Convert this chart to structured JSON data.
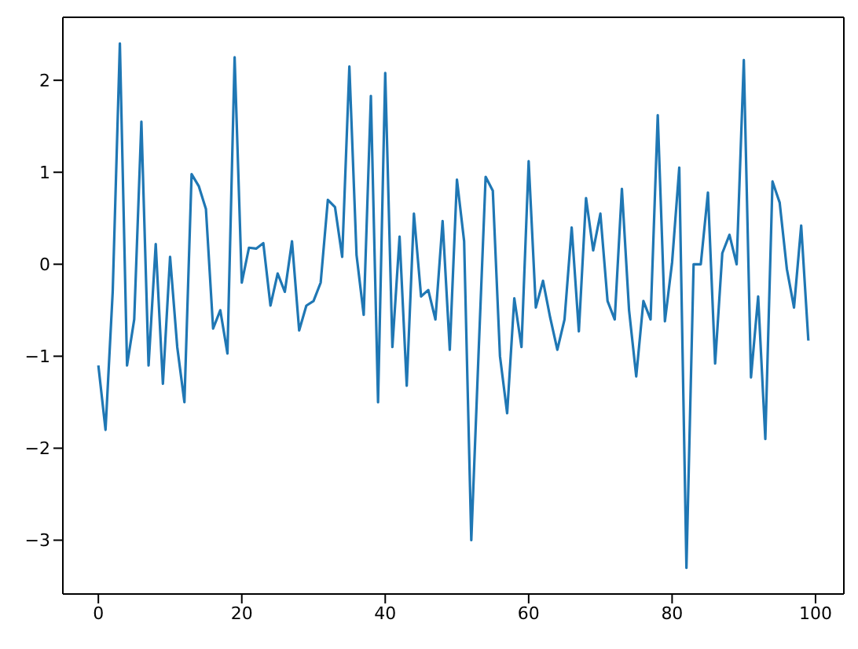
{
  "chart_data": {
    "type": "line",
    "x": [
      0,
      1,
      2,
      3,
      4,
      5,
      6,
      7,
      8,
      9,
      10,
      11,
      12,
      13,
      14,
      15,
      16,
      17,
      18,
      19,
      20,
      21,
      22,
      23,
      24,
      25,
      26,
      27,
      28,
      29,
      30,
      31,
      32,
      33,
      34,
      35,
      36,
      37,
      38,
      39,
      40,
      41,
      42,
      43,
      44,
      45,
      46,
      47,
      48,
      49,
      50,
      51,
      52,
      53,
      54,
      55,
      56,
      57,
      58,
      59,
      60,
      61,
      62,
      63,
      64,
      65,
      66,
      67,
      68,
      69,
      70,
      71,
      72,
      73,
      74,
      75,
      76,
      77,
      78,
      79,
      80,
      81,
      82,
      83,
      84,
      85,
      86,
      87,
      88,
      89,
      90,
      91,
      92,
      93,
      94,
      95,
      96,
      97,
      98,
      99
    ],
    "series": [
      {
        "color": "#1f77b4",
        "values": [
          -1.1,
          -1.8,
          -0.3,
          2.4,
          -1.1,
          -0.6,
          1.55,
          -1.1,
          0.22,
          -1.3,
          0.08,
          -0.9,
          -1.5,
          0.98,
          0.85,
          0.6,
          -0.7,
          -0.5,
          -0.97,
          2.25,
          -0.2,
          0.18,
          0.17,
          0.23,
          -0.45,
          -0.1,
          -0.3,
          0.25,
          -0.72,
          -0.45,
          -0.4,
          -0.2,
          0.7,
          0.62,
          0.08,
          2.15,
          0.1,
          -0.55,
          1.83,
          -1.5,
          2.08,
          -0.9,
          0.3,
          -1.32,
          0.55,
          -0.35,
          -0.28,
          -0.6,
          0.47,
          -0.93,
          0.92,
          0.25,
          -3.0,
          -1.0,
          0.95,
          0.8,
          -1.0,
          -1.62,
          -0.37,
          -0.9,
          1.12,
          -0.47,
          -0.18,
          -0.58,
          -0.93,
          -0.6,
          0.4,
          -0.73,
          0.72,
          0.15,
          0.55,
          -0.4,
          -0.6,
          0.82,
          -0.5,
          -1.22,
          -0.4,
          -0.6,
          1.62,
          -0.62,
          0.02,
          1.05,
          -3.3,
          0.0,
          0.0,
          0.78,
          -1.08,
          0.12,
          0.32,
          0.0,
          2.22,
          -1.23,
          -0.35,
          -1.9,
          0.9,
          0.67,
          -0.05,
          -0.47,
          0.42,
          -0.83
        ]
      }
    ],
    "xlim": [
      -4.95,
      103.95
    ],
    "xticks": [
      0,
      20,
      40,
      60,
      80,
      100
    ],
    "ylim": [
      -3.585,
      2.685
    ],
    "yticks": [
      -3,
      -2,
      -1,
      0,
      1,
      2
    ]
  }
}
